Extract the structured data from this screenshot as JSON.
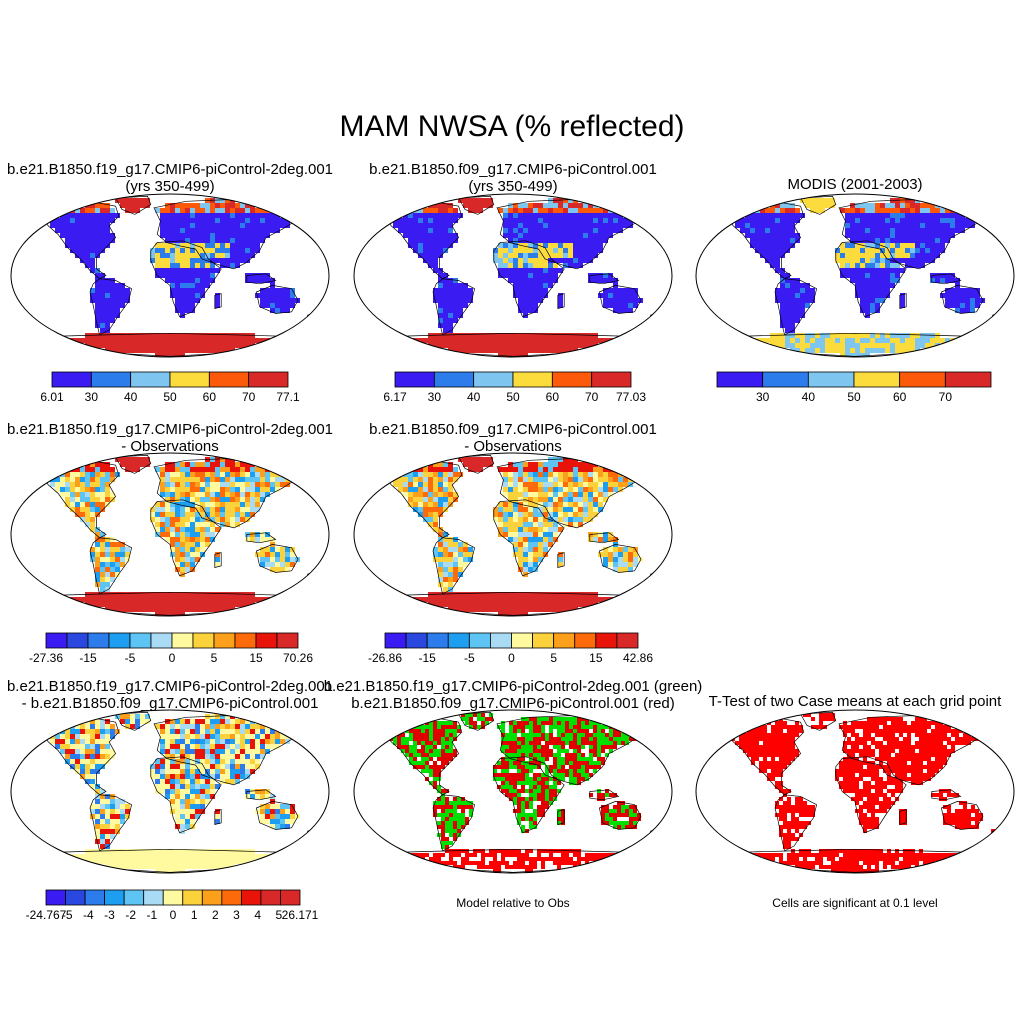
{
  "title": "MAM NWSA (% reflected)",
  "panels": [
    {
      "row": 1,
      "col": 1,
      "title_line1": "b.e21.B1850.f19_g17.CMIP6-piControl-2deg.001",
      "title_line2": "(yrs 350-499)",
      "colorbar": {
        "colors": [
          "#3a1cf2",
          "#2d7cec",
          "#7ec6ef",
          "#fcdc3c",
          "#fc5a0a",
          "#d82828"
        ],
        "labels": [
          "6.01",
          "30",
          "40",
          "50",
          "60",
          "70",
          "77.1"
        ]
      },
      "theme": "abs-model"
    },
    {
      "row": 1,
      "col": 2,
      "title_line1": "b.e21.B1850.f09_g17.CMIP6-piControl.001",
      "title_line2": "(yrs 350-499)",
      "colorbar": {
        "colors": [
          "#3a1cf2",
          "#2d7cec",
          "#7ec6ef",
          "#fcdc3c",
          "#fc5a0a",
          "#d82828"
        ],
        "labels": [
          "6.17",
          "30",
          "40",
          "50",
          "60",
          "70",
          "77.03"
        ]
      },
      "theme": "abs-model"
    },
    {
      "row": 1,
      "col": 3,
      "title_line1": "MODIS (2001-2003)",
      "title_line2": "",
      "colorbar": {
        "colors": [
          "#3a1cf2",
          "#2d7cec",
          "#7ec6ef",
          "#fcdc3c",
          "#fc5a0a",
          "#d82828"
        ],
        "labels": [
          "",
          "30",
          "40",
          "50",
          "60",
          "70",
          ""
        ]
      },
      "theme": "abs-obs"
    },
    {
      "row": 2,
      "col": 1,
      "title_line1": "b.e21.B1850.f19_g17.CMIP6-piControl-2deg.001",
      "title_line2": "- Observations",
      "colorbar": {
        "colors": [
          "#3a1cf2",
          "#2a48e0",
          "#2d7cec",
          "#1e9ef0",
          "#5ec4f4",
          "#a9dcf4",
          "#fffaa0",
          "#fcd23c",
          "#fca01c",
          "#fc6a0a",
          "#e8140a",
          "#d82828"
        ],
        "labels": [
          "-27.36",
          "-15",
          "-5",
          "0",
          "5",
          "15",
          "70.26"
        ]
      },
      "theme": "diff-obs"
    },
    {
      "row": 2,
      "col": 2,
      "title_line1": "b.e21.B1850.f09_g17.CMIP6-piControl.001",
      "title_line2": "- Observations",
      "colorbar": {
        "colors": [
          "#3a1cf2",
          "#2a48e0",
          "#2d7cec",
          "#1e9ef0",
          "#5ec4f4",
          "#a9dcf4",
          "#fffaa0",
          "#fcd23c",
          "#fca01c",
          "#fc6a0a",
          "#e8140a",
          "#d82828"
        ],
        "labels": [
          "-26.86",
          "-15",
          "-5",
          "0",
          "5",
          "15",
          "42.86"
        ]
      },
      "theme": "diff-obs"
    },
    {
      "row": 3,
      "col": 1,
      "title_line1": "b.e21.B1850.f19_g17.CMIP6-piControl-2deg.001",
      "title_line2": "- b.e21.B1850.f09_g17.CMIP6-piControl.001",
      "colorbar": {
        "colors": [
          "#3a1cf2",
          "#2a48e0",
          "#2d7cec",
          "#1e9ef0",
          "#5ec4f4",
          "#a9dcf4",
          "#fffaa0",
          "#fcd23c",
          "#fca01c",
          "#fc6a0a",
          "#e8140a",
          "#d82828",
          "#d82828"
        ],
        "labels": [
          "-24.767",
          "-5",
          "-4",
          "-3",
          "-2",
          "-1",
          "0",
          "1",
          "2",
          "3",
          "4",
          "5",
          "26.171"
        ]
      },
      "theme": "diff-model"
    },
    {
      "row": 3,
      "col": 2,
      "title_line1": "b.e21.B1850.f19_g17.CMIP6-piControl-2deg.001 (green)",
      "title_line2": "b.e21.B1850.f09_g17.CMIP6-piControl.001 (red)",
      "caption": "Model relative to Obs",
      "theme": "green-red"
    },
    {
      "row": 3,
      "col": 3,
      "title_line1": "T-Test of two Case means at each grid point",
      "title_line2": "",
      "caption": "Cells are significant at 0.1 level",
      "theme": "ttest"
    }
  ]
}
